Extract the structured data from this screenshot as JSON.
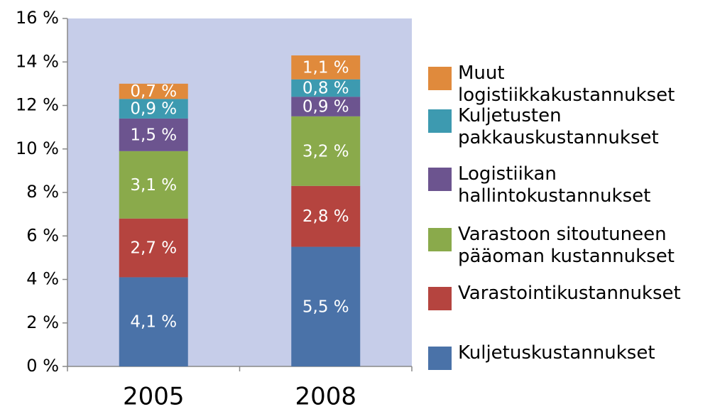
{
  "chart_data": {
    "type": "stacked_bar",
    "categories": [
      "2005",
      "2008"
    ],
    "series": [
      {
        "name": "Kuljetuskustannukset",
        "color": "#4a72a8",
        "values": [
          4.1,
          5.5
        ],
        "value_labels": [
          "4,1 %",
          "5,5 %"
        ]
      },
      {
        "name": "Varastointikustannukset",
        "color": "#b5443f",
        "values": [
          2.7,
          2.8
        ],
        "value_labels": [
          "2,7 %",
          "2,8 %"
        ]
      },
      {
        "name": "Varastoon sitoutuneen pääoman kustannukset",
        "color": "#8aaa4b",
        "values": [
          3.1,
          3.2
        ],
        "value_labels": [
          "3,1 %",
          "3,2 %"
        ]
      },
      {
        "name": "Logistiikan hallintokustannukset",
        "color": "#6c548f",
        "values": [
          1.5,
          0.9
        ],
        "value_labels": [
          "1,5 %",
          "0,9 %"
        ]
      },
      {
        "name": "Kuljetusten pakkauskustannukset",
        "color": "#3d9ab0",
        "values": [
          0.9,
          0.8
        ],
        "value_labels": [
          "0,9 %",
          "0,8 %"
        ]
      },
      {
        "name": "Muut logistiikkakustannukset",
        "color": "#e08a3c",
        "values": [
          0.7,
          1.1
        ],
        "value_labels": [
          "0,7 %",
          "1,1 %"
        ]
      }
    ],
    "ylim": [
      0,
      16
    ],
    "yticks": [
      {
        "value": 0,
        "label": "0 %"
      },
      {
        "value": 2,
        "label": "2 %"
      },
      {
        "value": 4,
        "label": "4 %"
      },
      {
        "value": 6,
        "label": "6 %"
      },
      {
        "value": 8,
        "label": "8 %"
      },
      {
        "value": 10,
        "label": "10 %"
      },
      {
        "value": 12,
        "label": "12 %"
      },
      {
        "value": 14,
        "label": "14 %"
      },
      {
        "value": 16,
        "label": "16 %"
      }
    ],
    "legend": "right"
  }
}
